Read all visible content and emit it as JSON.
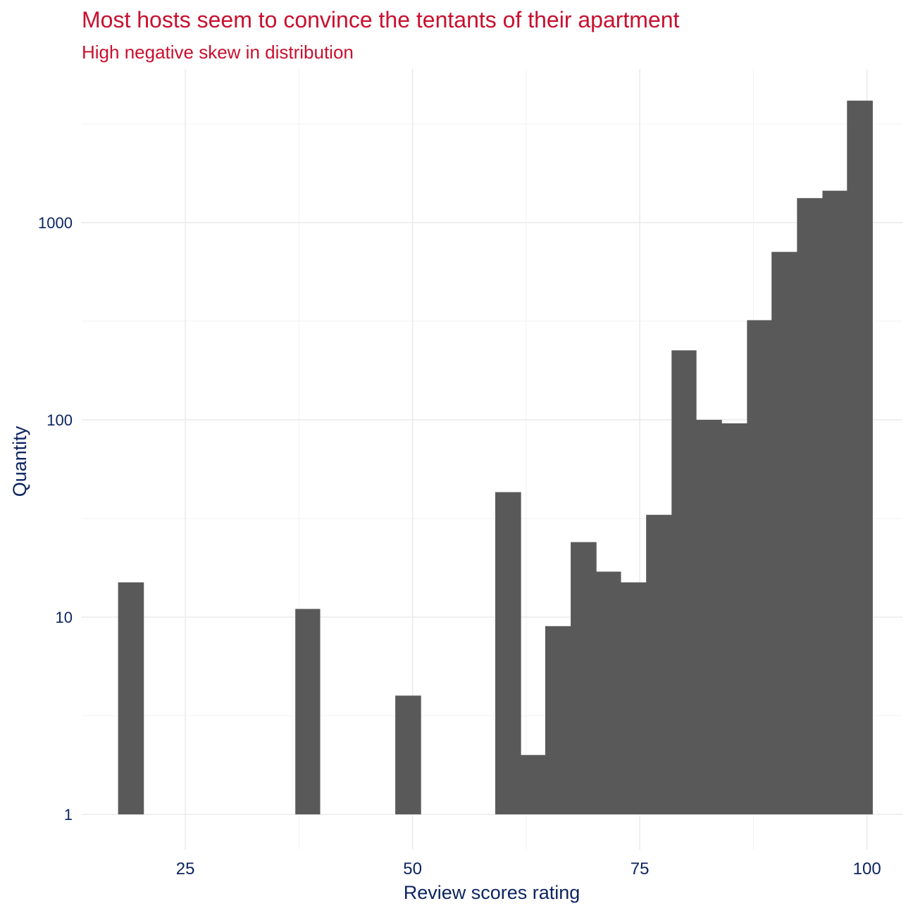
{
  "chart_data": {
    "type": "bar",
    "title": "Most hosts seem to convince the tentants of their apartment",
    "subtitle": "High negative skew in distribution",
    "xlabel": "Review scores rating",
    "ylabel": "Quantity",
    "y_scale": "log10",
    "xlim": [
      13.6,
      103.9
    ],
    "ylim": [
      1,
      6000
    ],
    "x_ticks": [
      25,
      50,
      75,
      100
    ],
    "y_ticks": [
      1,
      10,
      100,
      1000
    ],
    "grid": true,
    "bar_color": "#595959",
    "bins": [
      {
        "x0": 17.6,
        "x1": 20.4,
        "count": 15
      },
      {
        "x0": 37.1,
        "x1": 39.8,
        "count": 11
      },
      {
        "x0": 48.1,
        "x1": 50.9,
        "count": 4
      },
      {
        "x0": 59.1,
        "x1": 61.9,
        "count": 43
      },
      {
        "x0": 61.9,
        "x1": 64.6,
        "count": 2
      },
      {
        "x0": 64.6,
        "x1": 67.4,
        "count": 9
      },
      {
        "x0": 67.4,
        "x1": 70.2,
        "count": 24
      },
      {
        "x0": 70.2,
        "x1": 72.9,
        "count": 17
      },
      {
        "x0": 72.9,
        "x1": 75.7,
        "count": 15
      },
      {
        "x0": 75.7,
        "x1": 78.5,
        "count": 33
      },
      {
        "x0": 78.5,
        "x1": 81.2,
        "count": 225
      },
      {
        "x0": 81.2,
        "x1": 84.0,
        "count": 100
      },
      {
        "x0": 84.0,
        "x1": 86.8,
        "count": 96
      },
      {
        "x0": 86.8,
        "x1": 89.5,
        "count": 320
      },
      {
        "x0": 89.5,
        "x1": 92.3,
        "count": 710
      },
      {
        "x0": 92.3,
        "x1": 95.1,
        "count": 1330
      },
      {
        "x0": 95.1,
        "x1": 97.8,
        "count": 1450
      },
      {
        "x0": 97.8,
        "x1": 100.6,
        "count": 4150
      }
    ]
  }
}
